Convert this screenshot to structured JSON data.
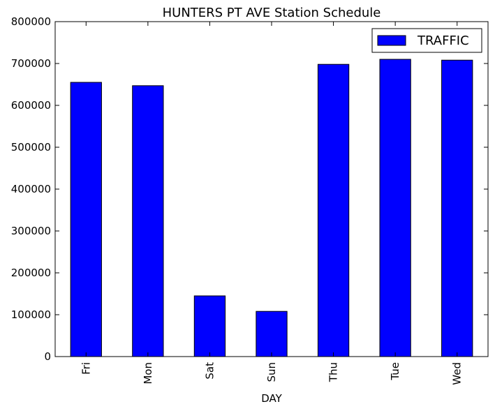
{
  "chart_data": {
    "type": "bar",
    "title": "HUNTERS PT AVE Station Schedule",
    "xlabel": "DAY",
    "ylabel": "",
    "categories": [
      "Fri",
      "Mon",
      "Sat",
      "Sun",
      "Thu",
      "Tue",
      "Wed"
    ],
    "series": [
      {
        "name": "TRAFFIC",
        "values": [
          655000,
          647000,
          145000,
          108000,
          698000,
          710000,
          708000
        ]
      }
    ],
    "ylim": [
      0,
      800000
    ],
    "yticks": [
      0,
      100000,
      200000,
      300000,
      400000,
      500000,
      600000,
      700000,
      800000
    ],
    "ytick_labels": [
      "0",
      "100000",
      "200000",
      "300000",
      "400000",
      "500000",
      "600000",
      "700000",
      "800000"
    ],
    "grid": false,
    "legend_position": "upper right",
    "colors": {
      "bar": "#0000ff",
      "edge": "#000000",
      "background": "#ffffff"
    }
  }
}
